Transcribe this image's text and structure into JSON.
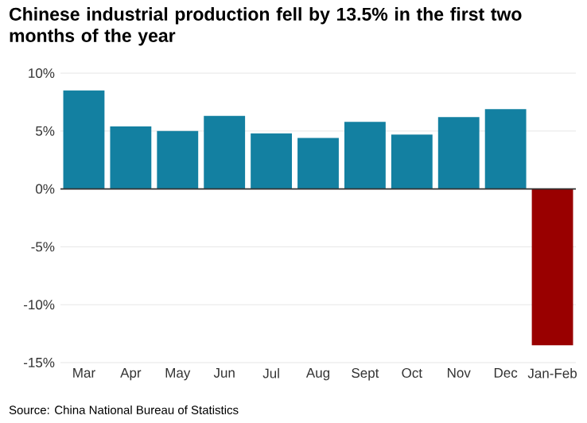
{
  "chart_data": {
    "type": "bar",
    "title": "Chinese industrial production fell by 13.5% in the first two months of the year",
    "categories": [
      "Mar",
      "Apr",
      "May",
      "Jun",
      "Jul",
      "Aug",
      "Sept",
      "Oct",
      "Nov",
      "Dec",
      "Jan-Feb"
    ],
    "values": [
      8.5,
      5.4,
      5.0,
      6.3,
      4.8,
      4.4,
      5.8,
      4.7,
      6.2,
      6.9,
      -13.5
    ],
    "colors": [
      "#1380a1",
      "#1380a1",
      "#1380a1",
      "#1380a1",
      "#1380a1",
      "#1380a1",
      "#1380a1",
      "#1380a1",
      "#1380a1",
      "#1380a1",
      "#990000"
    ],
    "ylim": [
      -15,
      10
    ],
    "yticks": [
      {
        "value": -15,
        "label": "-15%"
      },
      {
        "value": -10,
        "label": "-10%"
      },
      {
        "value": -5,
        "label": "-5%"
      },
      {
        "value": 0,
        "label": "0%"
      },
      {
        "value": 5,
        "label": "5%"
      },
      {
        "value": 10,
        "label": "10%"
      }
    ],
    "grid": "y",
    "ref_lines": [
      {
        "axis": "y",
        "value": 0,
        "color": "#333333"
      }
    ],
    "annotations": [
      "Source: China National Bureau of Statistics"
    ]
  }
}
